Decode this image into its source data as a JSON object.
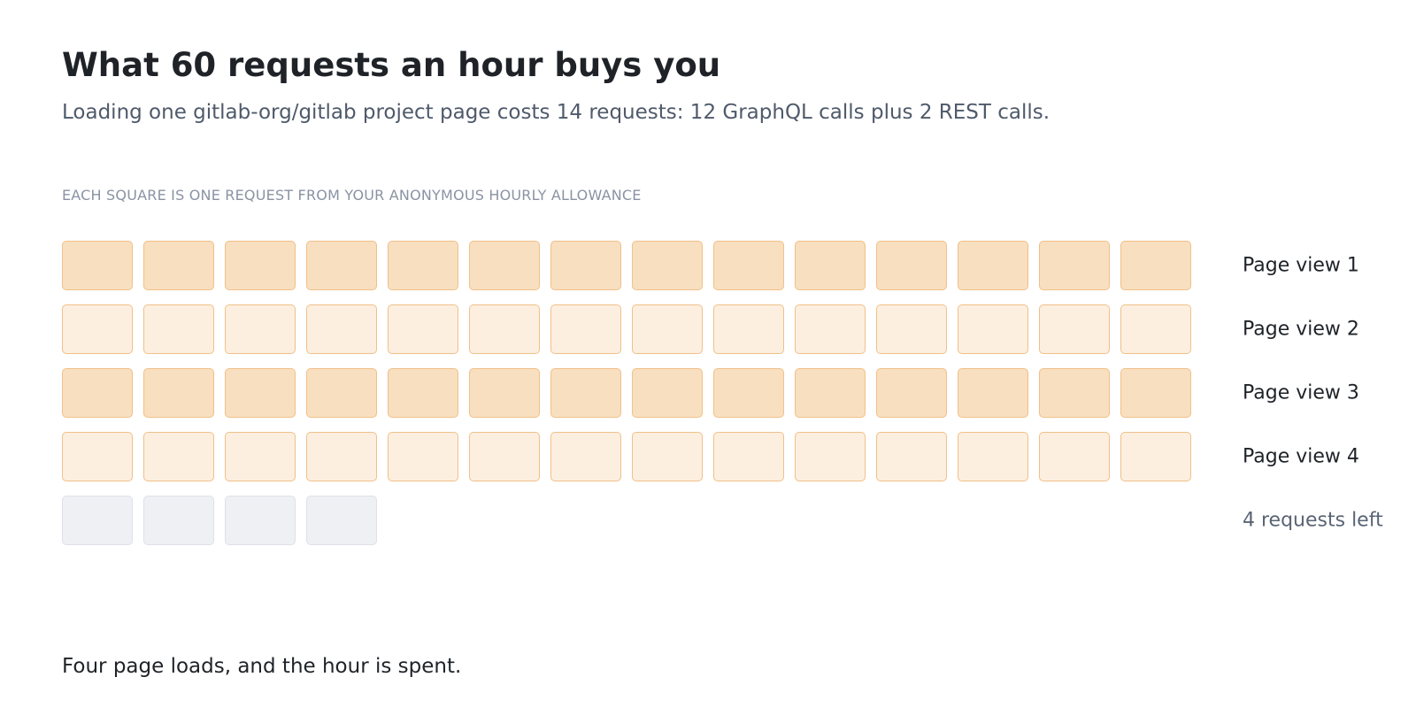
{
  "header": {
    "title": "What 60 requests an hour buys you",
    "subtitle": "Loading one gitlab-org/gitlab project page costs 14 requests: 12 GraphQL calls plus 2 REST calls."
  },
  "caption": "EACH SQUARE IS ONE REQUEST FROM YOUR ANONYMOUS HOURLY ALLOWANCE",
  "grid": {
    "requests_per_page_view": 14,
    "total_allowance": 60,
    "rows": [
      {
        "label": "Page view 1",
        "used": 14,
        "remaining": 0,
        "tone": "a"
      },
      {
        "label": "Page view 2",
        "used": 14,
        "remaining": 0,
        "tone": "b"
      },
      {
        "label": "Page view 3",
        "used": 14,
        "remaining": 0,
        "tone": "a"
      },
      {
        "label": "Page view 4",
        "used": 14,
        "remaining": 0,
        "tone": "b"
      },
      {
        "label": "4 requests left",
        "used": 0,
        "remaining": 4,
        "tone": "none"
      }
    ],
    "colors": {
      "used_fill_a": "#f8dfbf",
      "used_fill_b": "#fcefdf",
      "used_border": "#f1c089",
      "remaining_fill": "#eef0f4",
      "remaining_border": "#dde1e8"
    }
  },
  "footer": "Four page loads, and the hour is spent."
}
